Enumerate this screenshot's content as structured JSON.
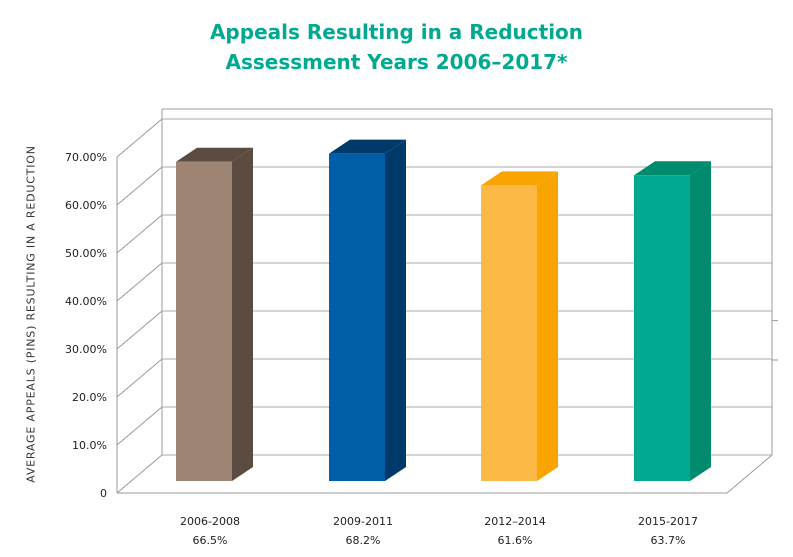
{
  "chart_data": {
    "type": "bar",
    "title": "Appeals Resulting in a Reduction",
    "subtitle": "Assessment Years 2006–2017*",
    "ylabel": "AVERAGE APPEALS (PINS) RESULTING IN A REDUCTION",
    "ylim": [
      0,
      70
    ],
    "y_ticks": [
      "0",
      "10.0%",
      "20.0%",
      "30.00%",
      "40.00%",
      "50.00%",
      "60.00%",
      "70.00%"
    ],
    "categories": [
      "2006-2008",
      "2009-2011",
      "2012–2014",
      "2015-2017"
    ],
    "value_labels": [
      "66.5%",
      "68.2%",
      "61.6%",
      "63.7%"
    ],
    "values": [
      66.5,
      68.2,
      61.6,
      63.7
    ],
    "colors": [
      {
        "front": "#9e8573",
        "side": "#5c4b40"
      },
      {
        "front": "#005ea7",
        "side": "#003a6b"
      },
      {
        "front": "#fdb946",
        "side": "#f9a400"
      },
      {
        "front": "#00a98f",
        "side": "#008a6e"
      }
    ],
    "grid": true
  }
}
